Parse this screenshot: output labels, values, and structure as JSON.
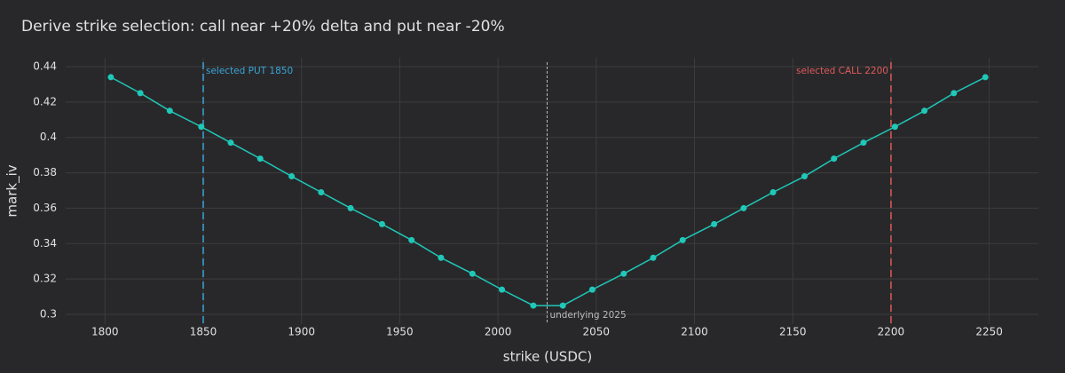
{
  "chart_data": {
    "type": "line",
    "title": "Derive strike selection: call near +20% delta and put near -20%",
    "x_label": "strike (USDC)",
    "y_label": "mark_iv",
    "x": [
      1803,
      1818,
      1833,
      1849,
      1864,
      1879,
      1895,
      1910,
      1925,
      1941,
      1956,
      1971,
      1987,
      2002,
      2018,
      2033,
      2048,
      2064,
      2079,
      2094,
      2110,
      2125,
      2140,
      2156,
      2171,
      2186,
      2202,
      2217,
      2232,
      2248
    ],
    "series": [
      {
        "name": "mark_iv",
        "color": "#1fc8b8",
        "values": [
          0.434,
          0.425,
          0.415,
          0.406,
          0.397,
          0.388,
          0.378,
          0.369,
          0.36,
          0.351,
          0.342,
          0.332,
          0.323,
          0.314,
          0.305,
          0.305,
          0.314,
          0.323,
          0.332,
          0.342,
          0.351,
          0.36,
          0.369,
          0.378,
          0.388,
          0.397,
          0.406,
          0.415,
          0.425,
          0.434
        ]
      }
    ],
    "xlim": [
      1780,
      2275
    ],
    "ylim": [
      0.2945,
      0.445
    ],
    "xticks": [
      1800,
      1850,
      1900,
      1950,
      2000,
      2050,
      2100,
      2150,
      2200,
      2250
    ],
    "yticks": [
      0.3,
      0.32,
      0.34,
      0.36,
      0.38,
      0.4,
      0.42,
      0.44
    ],
    "grid": true,
    "vlines": [
      {
        "value": 1850,
        "label": "selected PUT 1850",
        "color": "#3aa6d8",
        "dash": "dashed",
        "label_side": "right",
        "label_pos": "top"
      },
      {
        "value": 2200,
        "label": "selected CALL 2200",
        "color": "#e05a5a",
        "dash": "dashed",
        "label_side": "left",
        "label_pos": "top"
      },
      {
        "value": 2025,
        "label": "underlying 2025",
        "color": "#bbbbbb",
        "dash": "dotted",
        "label_side": "right",
        "label_pos": "bottom"
      }
    ]
  }
}
